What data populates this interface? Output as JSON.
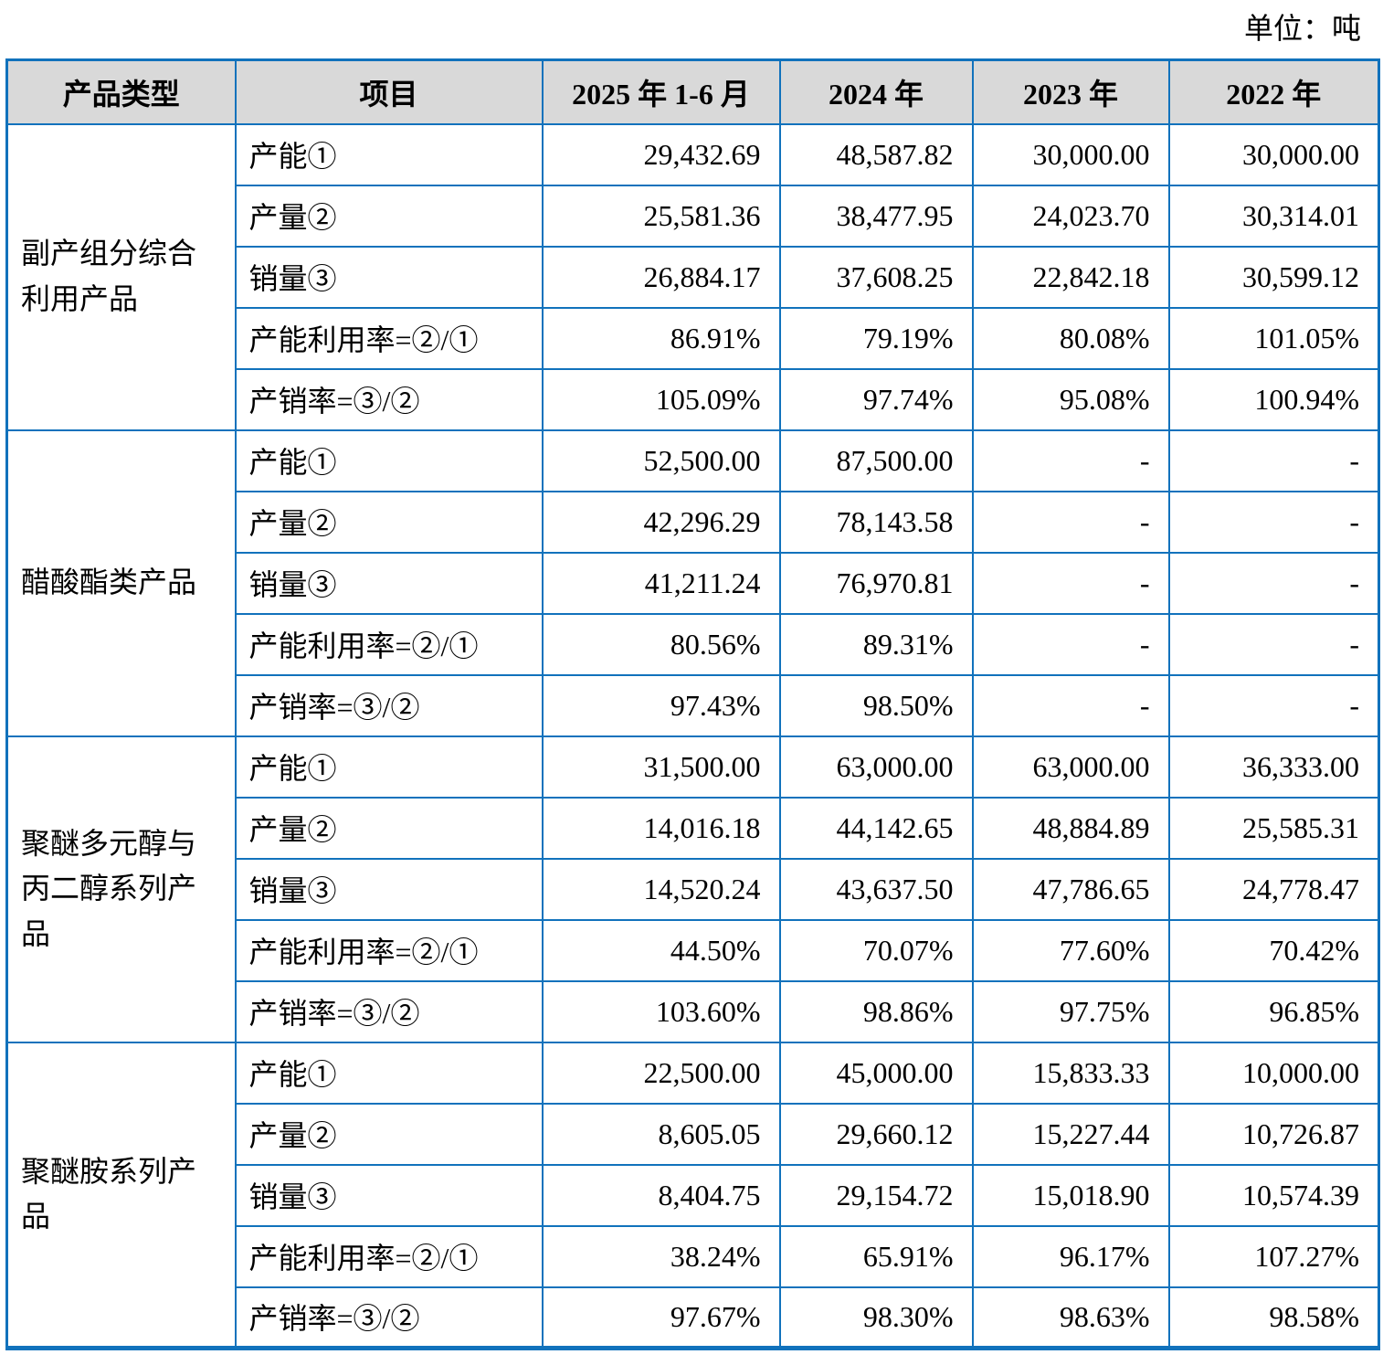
{
  "unit_label": "单位：吨",
  "table": {
    "border_color": "#1172bc",
    "header_bg": "#d9d9d9",
    "columns": [
      "产品类型",
      "项目",
      "2025 年 1-6 月",
      "2024 年",
      "2023 年",
      "2022 年"
    ],
    "row_items": [
      "产能①",
      "产量②",
      "销量③",
      "产能利用率=②/①",
      "产销率=③/②"
    ],
    "groups": [
      {
        "name": "副产组分综合\n利用产品",
        "rows": [
          [
            "29,432.69",
            "48,587.82",
            "30,000.00",
            "30,000.00"
          ],
          [
            "25,581.36",
            "38,477.95",
            "24,023.70",
            "30,314.01"
          ],
          [
            "26,884.17",
            "37,608.25",
            "22,842.18",
            "30,599.12"
          ],
          [
            "86.91%",
            "79.19%",
            "80.08%",
            "101.05%"
          ],
          [
            "105.09%",
            "97.74%",
            "95.08%",
            "100.94%"
          ]
        ]
      },
      {
        "name": "醋酸酯类产品",
        "rows": [
          [
            "52,500.00",
            "87,500.00",
            "-",
            "-"
          ],
          [
            "42,296.29",
            "78,143.58",
            "-",
            "-"
          ],
          [
            "41,211.24",
            "76,970.81",
            "-",
            "-"
          ],
          [
            "80.56%",
            "89.31%",
            "-",
            "-"
          ],
          [
            "97.43%",
            "98.50%",
            "-",
            "-"
          ]
        ]
      },
      {
        "name": "聚醚多元醇与\n丙二醇系列产\n品",
        "rows": [
          [
            "31,500.00",
            "63,000.00",
            "63,000.00",
            "36,333.00"
          ],
          [
            "14,016.18",
            "44,142.65",
            "48,884.89",
            "25,585.31"
          ],
          [
            "14,520.24",
            "43,637.50",
            "47,786.65",
            "24,778.47"
          ],
          [
            "44.50%",
            "70.07%",
            "77.60%",
            "70.42%"
          ],
          [
            "103.60%",
            "98.86%",
            "97.75%",
            "96.85%"
          ]
        ]
      },
      {
        "name": "聚醚胺系列产\n品",
        "rows": [
          [
            "22,500.00",
            "45,000.00",
            "15,833.33",
            "10,000.00"
          ],
          [
            "8,605.05",
            "29,660.12",
            "15,227.44",
            "10,726.87"
          ],
          [
            "8,404.75",
            "29,154.72",
            "15,018.90",
            "10,574.39"
          ],
          [
            "38.24%",
            "65.91%",
            "96.17%",
            "107.27%"
          ],
          [
            "97.67%",
            "98.30%",
            "98.63%",
            "98.58%"
          ]
        ]
      }
    ]
  }
}
